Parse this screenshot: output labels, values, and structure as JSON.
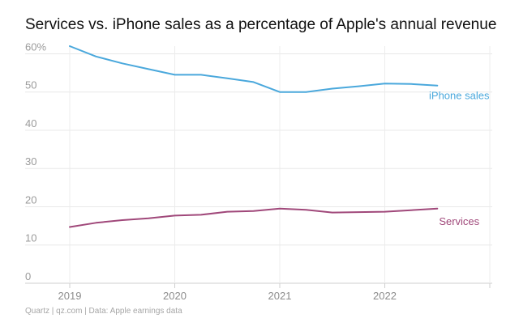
{
  "title": "Services vs. iPhone sales as a percentage of Apple's annual revenue",
  "source": "Quartz | qz.com | Data: Apple earnings data",
  "chart_data": {
    "type": "line",
    "ylim": [
      0,
      62
    ],
    "xlim": [
      2019,
      2023
    ],
    "grid": true,
    "y_ticks": [
      {
        "value": 0,
        "label": "0"
      },
      {
        "value": 10,
        "label": "10"
      },
      {
        "value": 20,
        "label": "20"
      },
      {
        "value": 30,
        "label": "30"
      },
      {
        "value": 40,
        "label": "40"
      },
      {
        "value": 50,
        "label": "50"
      },
      {
        "value": 60,
        "label": "60%"
      }
    ],
    "x_ticks": [
      {
        "value": 2019,
        "label": "2019"
      },
      {
        "value": 2020,
        "label": "2020"
      },
      {
        "value": 2021,
        "label": "2021"
      },
      {
        "value": 2022,
        "label": "2022"
      },
      {
        "value": 2023,
        "label": ""
      }
    ],
    "x": [
      2019,
      2019.25,
      2019.5,
      2019.75,
      2020,
      2020.25,
      2020.5,
      2020.75,
      2021,
      2021.25,
      2021.5,
      2021.75,
      2022,
      2022.25,
      2022.5
    ],
    "series": [
      {
        "name": "iPhone sales",
        "color": "#4aa8dc",
        "values": [
          62.0,
          59.3,
          57.5,
          56.0,
          54.5,
          54.5,
          53.6,
          52.6,
          50.0,
          50.0,
          50.9,
          51.5,
          52.2,
          52.1,
          51.7
        ]
      },
      {
        "name": "Services",
        "color": "#a0487a",
        "values": [
          14.7,
          15.8,
          16.5,
          17.0,
          17.7,
          17.9,
          18.7,
          18.9,
          19.5,
          19.2,
          18.5,
          18.6,
          18.7,
          19.1,
          19.5
        ]
      }
    ]
  }
}
